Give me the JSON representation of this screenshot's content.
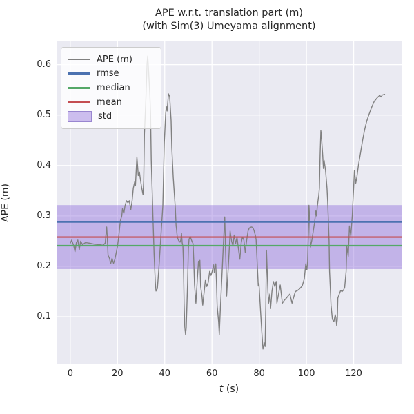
{
  "title": {
    "line1": "APE w.r.t. translation part (m)",
    "line2": "(with Sim(3) Umeyama alignment)"
  },
  "axes": {
    "xlabel_t": "t",
    "xlabel_units": "(s)",
    "ylabel": "APE (m)"
  },
  "legend": {
    "items": [
      {
        "label": "APE (m)",
        "type": "line",
        "color": "#808080"
      },
      {
        "label": "rmse",
        "type": "line",
        "color": "#4C72B0"
      },
      {
        "label": "median",
        "type": "line",
        "color": "#55A868"
      },
      {
        "label": "mean",
        "type": "line",
        "color": "#C44E52"
      },
      {
        "label": "std",
        "type": "patch",
        "color": "rgba(147,112,219,0.45)",
        "border": "rgba(140,120,200,0.8)"
      }
    ]
  },
  "chart_data": {
    "type": "line",
    "title": "APE w.r.t. translation part (m) (with Sim(3) Umeyama alignment)",
    "xlabel": "t (s)",
    "ylabel": "APE (m)",
    "xlim": [
      -5.8,
      140.3
    ],
    "ylim": [
      0.007,
      0.646
    ],
    "x_ticks": [
      {
        "v": 0,
        "label": "0"
      },
      {
        "v": 20,
        "label": "20"
      },
      {
        "v": 40,
        "label": "40"
      },
      {
        "v": 60,
        "label": "60"
      },
      {
        "v": 80,
        "label": "80"
      },
      {
        "v": 100,
        "label": "100"
      },
      {
        "v": 120,
        "label": "120"
      }
    ],
    "y_ticks": [
      {
        "v": 0.1,
        "label": "0.1"
      },
      {
        "v": 0.2,
        "label": "0.2"
      },
      {
        "v": 0.3,
        "label": "0.3"
      },
      {
        "v": 0.4,
        "label": "0.4"
      },
      {
        "v": 0.5,
        "label": "0.5"
      },
      {
        "v": 0.6,
        "label": "0.6"
      }
    ],
    "grid": true,
    "legend_position": "upper left",
    "stats": {
      "rmse": 0.288,
      "median": 0.241,
      "mean": 0.258,
      "std": 0.0635
    },
    "std_band": {
      "lower": 0.1945,
      "upper": 0.3215
    },
    "colors": {
      "ape": "#808080",
      "rmse": "#4C72B0",
      "median": "#55A868",
      "mean": "#C44E52",
      "std_fill": "rgba(147,112,219,0.45)",
      "axes_background": "#EAEAF2",
      "grid": "#FFFFFF",
      "text": "#262626"
    },
    "series": [
      {
        "name": "APE (m)",
        "color": "#808080",
        "points": [
          [
            0.0,
            0.246
          ],
          [
            0.6,
            0.252
          ],
          [
            1.5,
            0.24
          ],
          [
            2.0,
            0.229
          ],
          [
            2.6,
            0.247
          ],
          [
            3.2,
            0.252
          ],
          [
            3.8,
            0.233
          ],
          [
            4.4,
            0.25
          ],
          [
            5.2,
            0.243
          ],
          [
            6.4,
            0.247
          ],
          [
            8.1,
            0.246
          ],
          [
            10.2,
            0.244
          ],
          [
            12.2,
            0.243
          ],
          [
            13.9,
            0.242
          ],
          [
            14.8,
            0.246
          ],
          [
            15.1,
            0.262
          ],
          [
            15.4,
            0.278
          ],
          [
            15.7,
            0.255
          ],
          [
            16.0,
            0.222
          ],
          [
            16.6,
            0.216
          ],
          [
            17.1,
            0.205
          ],
          [
            17.7,
            0.216
          ],
          [
            18.3,
            0.206
          ],
          [
            18.9,
            0.214
          ],
          [
            19.5,
            0.228
          ],
          [
            20.0,
            0.24
          ],
          [
            20.6,
            0.262
          ],
          [
            21.2,
            0.29
          ],
          [
            21.8,
            0.3
          ],
          [
            22.1,
            0.314
          ],
          [
            22.7,
            0.305
          ],
          [
            23.2,
            0.32
          ],
          [
            23.8,
            0.33
          ],
          [
            24.4,
            0.326
          ],
          [
            25.0,
            0.33
          ],
          [
            25.6,
            0.312
          ],
          [
            26.2,
            0.33
          ],
          [
            26.7,
            0.355
          ],
          [
            27.3,
            0.368
          ],
          [
            27.6,
            0.36
          ],
          [
            27.9,
            0.387
          ],
          [
            28.2,
            0.417
          ],
          [
            28.5,
            0.4
          ],
          [
            28.8,
            0.38
          ],
          [
            29.3,
            0.387
          ],
          [
            29.6,
            0.376
          ],
          [
            30.2,
            0.357
          ],
          [
            30.8,
            0.342
          ],
          [
            31.1,
            0.37
          ],
          [
            31.4,
            0.462
          ],
          [
            32.0,
            0.53
          ],
          [
            32.5,
            0.6
          ],
          [
            32.8,
            0.617
          ],
          [
            33.1,
            0.595
          ],
          [
            33.7,
            0.54
          ],
          [
            34.0,
            0.503
          ],
          [
            34.3,
            0.411
          ],
          [
            34.9,
            0.316
          ],
          [
            35.5,
            0.225
          ],
          [
            36.0,
            0.168
          ],
          [
            36.3,
            0.151
          ],
          [
            36.9,
            0.156
          ],
          [
            37.5,
            0.195
          ],
          [
            38.4,
            0.262
          ],
          [
            39.2,
            0.32
          ],
          [
            39.8,
            0.444
          ],
          [
            40.4,
            0.503
          ],
          [
            40.7,
            0.517
          ],
          [
            41.0,
            0.508
          ],
          [
            41.6,
            0.542
          ],
          [
            42.1,
            0.537
          ],
          [
            42.7,
            0.489
          ],
          [
            43.0,
            0.435
          ],
          [
            43.6,
            0.376
          ],
          [
            44.5,
            0.315
          ],
          [
            44.8,
            0.281
          ],
          [
            45.0,
            0.273
          ],
          [
            45.3,
            0.258
          ],
          [
            45.9,
            0.251
          ],
          [
            46.5,
            0.248
          ],
          [
            46.8,
            0.252
          ],
          [
            47.1,
            0.266
          ],
          [
            47.4,
            0.246
          ],
          [
            47.7,
            0.239
          ],
          [
            47.9,
            0.21
          ],
          [
            48.2,
            0.127
          ],
          [
            48.5,
            0.08
          ],
          [
            48.8,
            0.065
          ],
          [
            49.1,
            0.078
          ],
          [
            49.7,
            0.168
          ],
          [
            50.0,
            0.236
          ],
          [
            50.3,
            0.254
          ],
          [
            50.8,
            0.259
          ],
          [
            51.4,
            0.251
          ],
          [
            52.0,
            0.245
          ],
          [
            52.3,
            0.212
          ],
          [
            52.6,
            0.164
          ],
          [
            53.2,
            0.127
          ],
          [
            53.8,
            0.175
          ],
          [
            54.3,
            0.21
          ],
          [
            54.6,
            0.2
          ],
          [
            54.9,
            0.212
          ],
          [
            55.2,
            0.16
          ],
          [
            55.8,
            0.14
          ],
          [
            56.1,
            0.123
          ],
          [
            56.7,
            0.15
          ],
          [
            57.2,
            0.172
          ],
          [
            57.8,
            0.16
          ],
          [
            58.4,
            0.168
          ],
          [
            59.0,
            0.19
          ],
          [
            59.6,
            0.182
          ],
          [
            60.1,
            0.19
          ],
          [
            60.7,
            0.203
          ],
          [
            61.0,
            0.188
          ],
          [
            61.3,
            0.196
          ],
          [
            61.6,
            0.205
          ],
          [
            61.9,
            0.17
          ],
          [
            62.2,
            0.122
          ],
          [
            62.8,
            0.09
          ],
          [
            63.1,
            0.065
          ],
          [
            63.6,
            0.12
          ],
          [
            64.2,
            0.18
          ],
          [
            64.8,
            0.24
          ],
          [
            65.4,
            0.298
          ],
          [
            65.7,
            0.24
          ],
          [
            66.0,
            0.195
          ],
          [
            66.2,
            0.141
          ],
          [
            66.8,
            0.19
          ],
          [
            67.4,
            0.24
          ],
          [
            67.7,
            0.27
          ],
          [
            68.3,
            0.25
          ],
          [
            68.9,
            0.241
          ],
          [
            69.4,
            0.262
          ],
          [
            70.0,
            0.245
          ],
          [
            70.6,
            0.258
          ],
          [
            71.2,
            0.235
          ],
          [
            71.8,
            0.214
          ],
          [
            72.4,
            0.247
          ],
          [
            72.9,
            0.258
          ],
          [
            73.5,
            0.252
          ],
          [
            74.1,
            0.228
          ],
          [
            74.7,
            0.252
          ],
          [
            75.3,
            0.27
          ],
          [
            75.8,
            0.276
          ],
          [
            76.7,
            0.278
          ],
          [
            77.3,
            0.277
          ],
          [
            77.9,
            0.27
          ],
          [
            78.5,
            0.259
          ],
          [
            78.7,
            0.252
          ],
          [
            79.0,
            0.222
          ],
          [
            79.3,
            0.193
          ],
          [
            79.6,
            0.161
          ],
          [
            79.9,
            0.166
          ],
          [
            80.5,
            0.118
          ],
          [
            81.1,
            0.07
          ],
          [
            81.6,
            0.036
          ],
          [
            82.2,
            0.048
          ],
          [
            82.5,
            0.041
          ],
          [
            82.8,
            0.12
          ],
          [
            83.1,
            0.232
          ],
          [
            83.7,
            0.15
          ],
          [
            84.0,
            0.127
          ],
          [
            84.5,
            0.145
          ],
          [
            84.8,
            0.116
          ],
          [
            85.4,
            0.15
          ],
          [
            86.0,
            0.17
          ],
          [
            86.6,
            0.16
          ],
          [
            87.2,
            0.17
          ],
          [
            87.5,
            0.127
          ],
          [
            88.0,
            0.14
          ],
          [
            88.9,
            0.163
          ],
          [
            89.8,
            0.127
          ],
          [
            90.7,
            0.133
          ],
          [
            91.5,
            0.137
          ],
          [
            92.4,
            0.142
          ],
          [
            93.0,
            0.145
          ],
          [
            93.9,
            0.127
          ],
          [
            94.7,
            0.14
          ],
          [
            95.3,
            0.15
          ],
          [
            96.2,
            0.152
          ],
          [
            96.8,
            0.154
          ],
          [
            97.6,
            0.158
          ],
          [
            98.2,
            0.161
          ],
          [
            99.1,
            0.175
          ],
          [
            99.7,
            0.205
          ],
          [
            100.2,
            0.193
          ],
          [
            100.5,
            0.21
          ],
          [
            100.9,
            0.28
          ],
          [
            101.1,
            0.321
          ],
          [
            101.4,
            0.29
          ],
          [
            101.7,
            0.238
          ],
          [
            102.3,
            0.252
          ],
          [
            102.9,
            0.27
          ],
          [
            103.4,
            0.285
          ],
          [
            104.0,
            0.31
          ],
          [
            104.3,
            0.3
          ],
          [
            104.6,
            0.318
          ],
          [
            104.9,
            0.33
          ],
          [
            105.2,
            0.34
          ],
          [
            105.5,
            0.355
          ],
          [
            105.8,
            0.42
          ],
          [
            106.1,
            0.469
          ],
          [
            106.4,
            0.455
          ],
          [
            106.6,
            0.44
          ],
          [
            106.9,
            0.42
          ],
          [
            107.2,
            0.394
          ],
          [
            107.5,
            0.41
          ],
          [
            107.8,
            0.4
          ],
          [
            108.1,
            0.39
          ],
          [
            108.7,
            0.355
          ],
          [
            109.0,
            0.327
          ],
          [
            109.3,
            0.29
          ],
          [
            109.6,
            0.25
          ],
          [
            109.8,
            0.19
          ],
          [
            110.1,
            0.16
          ],
          [
            110.4,
            0.123
          ],
          [
            111.0,
            0.095
          ],
          [
            111.6,
            0.09
          ],
          [
            112.2,
            0.104
          ],
          [
            112.5,
            0.098
          ],
          [
            112.8,
            0.083
          ],
          [
            113.1,
            0.095
          ],
          [
            113.3,
            0.137
          ],
          [
            113.9,
            0.145
          ],
          [
            114.5,
            0.152
          ],
          [
            115.1,
            0.15
          ],
          [
            115.7,
            0.153
          ],
          [
            116.2,
            0.158
          ],
          [
            116.8,
            0.19
          ],
          [
            117.1,
            0.24
          ],
          [
            117.7,
            0.22
          ],
          [
            118.2,
            0.28
          ],
          [
            118.8,
            0.26
          ],
          [
            119.4,
            0.3
          ],
          [
            120.0,
            0.355
          ],
          [
            120.3,
            0.39
          ],
          [
            120.9,
            0.365
          ],
          [
            121.4,
            0.378
          ],
          [
            122.0,
            0.4
          ],
          [
            122.9,
            0.425
          ],
          [
            123.8,
            0.45
          ],
          [
            124.6,
            0.47
          ],
          [
            125.5,
            0.487
          ],
          [
            126.4,
            0.5
          ],
          [
            127.6,
            0.515
          ],
          [
            128.7,
            0.527
          ],
          [
            129.9,
            0.534
          ],
          [
            131.0,
            0.539
          ],
          [
            131.6,
            0.536
          ],
          [
            132.2,
            0.54
          ],
          [
            133.1,
            0.541
          ]
        ]
      }
    ]
  }
}
